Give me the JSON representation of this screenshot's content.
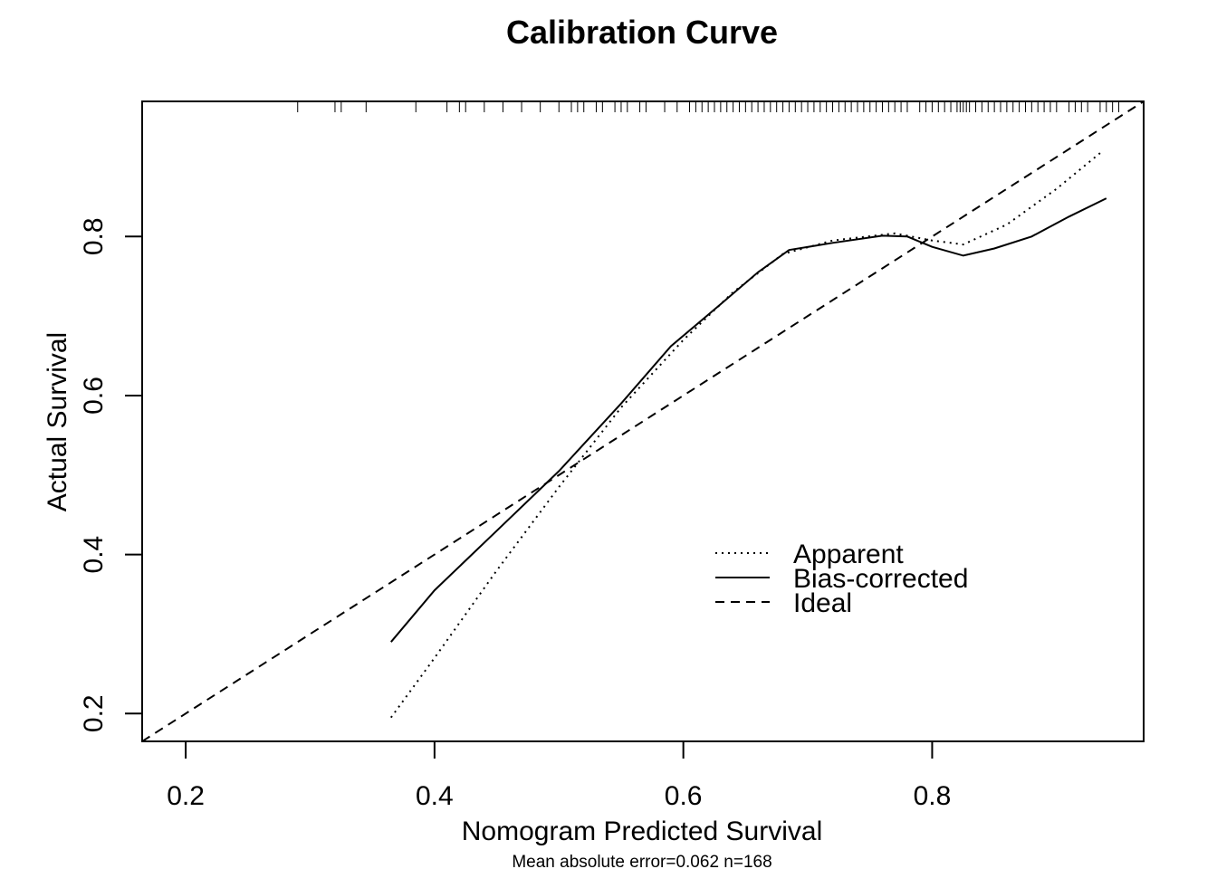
{
  "chart_data": {
    "type": "line",
    "title": "Calibration Curve",
    "xlabel": "Nomogram Predicted Survival",
    "ylabel": "Actual Survival",
    "xlim": [
      0.165,
      0.97
    ],
    "ylim": [
      0.165,
      0.97
    ],
    "x_ticks": [
      0.2,
      0.4,
      0.6,
      0.8
    ],
    "y_ticks": [
      0.2,
      0.4,
      0.6,
      0.8
    ],
    "x_tick_labels": [
      "0.2",
      "0.4",
      "0.6",
      "0.8"
    ],
    "y_tick_labels": [
      "0.2",
      "0.4",
      "0.6",
      "0.8"
    ],
    "grid": false,
    "legend": {
      "position": "bottom-right",
      "entries": [
        {
          "label": "Apparent",
          "style": "dotted"
        },
        {
          "label": "Bias-corrected",
          "style": "solid"
        },
        {
          "label": "Ideal",
          "style": "dashed"
        }
      ]
    },
    "series": [
      {
        "name": "Apparent",
        "style": "dotted",
        "x": [
          0.365,
          0.4,
          0.45,
          0.5,
          0.55,
          0.6,
          0.64,
          0.68,
          0.72,
          0.77,
          0.8,
          0.825,
          0.86,
          0.9,
          0.935
        ],
        "y": [
          0.195,
          0.27,
          0.38,
          0.485,
          0.585,
          0.67,
          0.73,
          0.778,
          0.795,
          0.804,
          0.795,
          0.79,
          0.815,
          0.86,
          0.905
        ]
      },
      {
        "name": "Bias-corrected",
        "style": "solid",
        "x": [
          0.365,
          0.4,
          0.45,
          0.5,
          0.55,
          0.59,
          0.63,
          0.66,
          0.685,
          0.72,
          0.76,
          0.78,
          0.8,
          0.825,
          0.85,
          0.88,
          0.91,
          0.94
        ],
        "y": [
          0.29,
          0.355,
          0.43,
          0.505,
          0.59,
          0.662,
          0.715,
          0.755,
          0.783,
          0.792,
          0.801,
          0.8,
          0.787,
          0.776,
          0.785,
          0.8,
          0.825,
          0.848
        ]
      },
      {
        "name": "Ideal",
        "style": "dashed",
        "x": [
          0.165,
          0.97
        ],
        "y": [
          0.165,
          0.97
        ]
      }
    ],
    "rug_x": [
      0.29,
      0.32,
      0.325,
      0.345,
      0.385,
      0.41,
      0.42,
      0.425,
      0.44,
      0.455,
      0.47,
      0.485,
      0.5,
      0.51,
      0.515,
      0.52,
      0.53,
      0.535,
      0.545,
      0.55,
      0.555,
      0.565,
      0.57,
      0.585,
      0.595,
      0.605,
      0.61,
      0.615,
      0.62,
      0.625,
      0.63,
      0.635,
      0.64,
      0.645,
      0.65,
      0.655,
      0.66,
      0.665,
      0.67,
      0.675,
      0.68,
      0.685,
      0.69,
      0.695,
      0.7,
      0.705,
      0.71,
      0.715,
      0.72,
      0.725,
      0.73,
      0.735,
      0.74,
      0.745,
      0.75,
      0.755,
      0.76,
      0.765,
      0.77,
      0.775,
      0.78,
      0.79,
      0.795,
      0.8,
      0.805,
      0.81,
      0.815,
      0.82,
      0.8225,
      0.825,
      0.8275,
      0.83,
      0.835,
      0.84,
      0.845,
      0.85,
      0.855,
      0.86,
      0.865,
      0.87,
      0.875,
      0.88,
      0.885,
      0.89,
      0.895,
      0.9,
      0.91,
      0.915,
      0.92,
      0.925,
      0.935,
      0.94,
      0.945,
      0.95
    ],
    "footnote": "Mean absolute error=0.062 n=168"
  }
}
